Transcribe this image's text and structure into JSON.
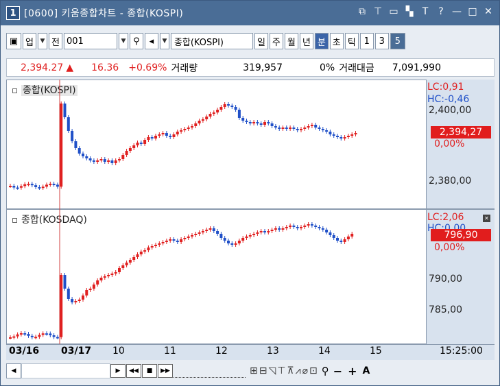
{
  "window": {
    "number": "1",
    "title": "[0600] 키움종합차트 - 종합(KOSPI)"
  },
  "title_icons": [
    "window-icon",
    "pin-icon",
    "restore-icon",
    "filter-icon",
    "font-icon",
    "help-icon",
    "minimize-icon",
    "maximize-icon",
    "close-icon"
  ],
  "title_icon_glyphs": [
    "⧉",
    "⊤",
    "▭",
    "▚",
    "T",
    "?",
    "—",
    "□",
    "✕"
  ],
  "toolbar": {
    "market_type": "업",
    "period": "전",
    "code": "001",
    "name": "종합(KOSPI)",
    "periods": [
      "일",
      "주",
      "월",
      "년"
    ],
    "units": [
      "분",
      "초",
      "틱"
    ],
    "intervals": [
      "1",
      "3",
      "5"
    ],
    "selected_interval": "5"
  },
  "info": {
    "price": "2,394.27",
    "change": "16.36",
    "change_pct": "+0.69%",
    "volume_label": "거래량",
    "volume": "319,957",
    "ratio": "0%",
    "amount_label": "거래대금",
    "amount": "7,091,990"
  },
  "panels": {
    "top": {
      "title": "종합(KOSPI)",
      "lc": "LC:0,91",
      "hc": "HC:-0,46",
      "y_labels": [
        "2,400,00",
        "2,380,00"
      ],
      "current_price": "2,394,27",
      "current_pct": "0,00%"
    },
    "bottom": {
      "title": "종합(KOSDAQ)",
      "lc": "LC:2,06",
      "hc": "HC:0,00",
      "y_labels": [
        "790,00",
        "785,00"
      ],
      "current_price": "796,90",
      "current_pct": "0,00%"
    }
  },
  "xaxis": {
    "labels": [
      "03/16",
      "03/17",
      "10",
      "11",
      "12",
      "13",
      "14",
      "15"
    ],
    "time": "15:25:00"
  },
  "colors": {
    "up": "#e02020",
    "down": "#2050c8",
    "title_bar": "#4a6d96",
    "axis_bg": "#d8e2ee"
  }
}
